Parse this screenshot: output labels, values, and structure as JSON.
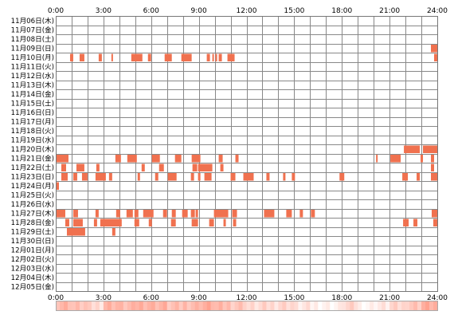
{
  "chart_data": {
    "type": "heatmap",
    "title": "",
    "xlabel": "",
    "ylabel": "",
    "x_ticks": [
      "0:00",
      "3:00",
      "6:00",
      "9:00",
      "12:00",
      "15:00",
      "18:00",
      "21:00",
      "24:00"
    ],
    "x_range_hours": [
      0,
      24
    ],
    "grid": true,
    "colors": {
      "active": "#f0714f",
      "grid": "#888888",
      "frame": "#777777",
      "background": "#ffffff",
      "text": "#000000"
    },
    "rows": [
      {
        "date": "11月06日(木)",
        "intervals": []
      },
      {
        "date": "11月07日(金)",
        "intervals": []
      },
      {
        "date": "11月08日(土)",
        "intervals": []
      },
      {
        "date": "11月09日(日)",
        "intervals": [
          [
            23.6,
            24.0
          ]
        ]
      },
      {
        "date": "11月10日(月)",
        "intervals": [
          [
            0.9,
            1.1
          ],
          [
            1.5,
            1.8
          ],
          [
            2.7,
            2.9
          ],
          [
            3.5,
            3.6
          ],
          [
            4.75,
            5.45
          ],
          [
            5.8,
            6.0
          ],
          [
            6.85,
            7.3
          ],
          [
            7.9,
            8.55
          ],
          [
            9.5,
            9.7
          ],
          [
            9.85,
            9.95
          ],
          [
            10.05,
            10.15
          ],
          [
            10.25,
            10.45
          ],
          [
            10.8,
            11.25
          ],
          [
            23.8,
            24.0
          ]
        ]
      },
      {
        "date": "11月11日(火)",
        "intervals": []
      },
      {
        "date": "11月12日(水)",
        "intervals": []
      },
      {
        "date": "11月13日(木)",
        "intervals": []
      },
      {
        "date": "11月14日(金)",
        "intervals": []
      },
      {
        "date": "11月15日(土)",
        "intervals": []
      },
      {
        "date": "11月16日(日)",
        "intervals": []
      },
      {
        "date": "11月17日(月)",
        "intervals": []
      },
      {
        "date": "11月18日(火)",
        "intervals": []
      },
      {
        "date": "11月19日(水)",
        "intervals": []
      },
      {
        "date": "11月20日(木)",
        "intervals": [
          [
            21.9,
            22.9
          ],
          [
            23.1,
            24.0
          ]
        ]
      },
      {
        "date": "11月21日(金)",
        "intervals": [
          [
            0.0,
            0.8
          ],
          [
            3.75,
            4.1
          ],
          [
            4.5,
            5.1
          ],
          [
            6.05,
            6.55
          ],
          [
            7.5,
            7.9
          ],
          [
            8.55,
            9.1
          ],
          [
            10.25,
            10.5
          ],
          [
            11.3,
            11.5
          ],
          [
            20.15,
            20.25
          ],
          [
            21.05,
            21.7
          ],
          [
            22.95,
            23.1
          ],
          [
            23.6,
            23.8
          ]
        ]
      },
      {
        "date": "11月22日(土)",
        "intervals": [
          [
            0.35,
            0.65
          ],
          [
            1.3,
            1.8
          ],
          [
            2.55,
            2.75
          ],
          [
            5.4,
            5.6
          ],
          [
            6.5,
            6.8
          ],
          [
            8.6,
            8.9
          ],
          [
            8.95,
            9.85
          ],
          [
            10.35,
            10.55
          ],
          [
            23.6,
            23.8
          ]
        ]
      },
      {
        "date": "11月23日(日)",
        "intervals": [
          [
            0.35,
            0.75
          ],
          [
            1.1,
            1.35
          ],
          [
            1.65,
            2.0
          ],
          [
            2.5,
            3.15
          ],
          [
            3.35,
            3.55
          ],
          [
            5.15,
            5.3
          ],
          [
            6.25,
            6.45
          ],
          [
            7.05,
            7.6
          ],
          [
            8.5,
            8.7
          ],
          [
            8.95,
            9.1
          ],
          [
            9.35,
            9.8
          ],
          [
            11.0,
            11.3
          ],
          [
            11.8,
            12.45
          ],
          [
            13.25,
            13.45
          ],
          [
            14.3,
            14.45
          ],
          [
            14.85,
            15.05
          ],
          [
            17.85,
            18.15
          ],
          [
            21.8,
            22.15
          ],
          [
            22.7,
            22.9
          ],
          [
            23.6,
            24.0
          ]
        ]
      },
      {
        "date": "11月24日(月)",
        "intervals": [
          [
            0.0,
            0.2
          ]
        ]
      },
      {
        "date": "11月25日(火)",
        "intervals": []
      },
      {
        "date": "11月26日(水)",
        "intervals": []
      },
      {
        "date": "11月27日(木)",
        "intervals": [
          [
            0.0,
            0.6
          ],
          [
            1.1,
            1.4
          ],
          [
            2.5,
            2.7
          ],
          [
            3.8,
            4.05
          ],
          [
            4.45,
            4.85
          ],
          [
            4.95,
            5.2
          ],
          [
            5.5,
            6.15
          ],
          [
            6.75,
            7.0
          ],
          [
            7.3,
            7.55
          ],
          [
            7.95,
            8.3
          ],
          [
            8.5,
            8.75
          ],
          [
            8.8,
            8.95
          ],
          [
            9.95,
            10.85
          ],
          [
            11.1,
            11.4
          ],
          [
            13.1,
            13.75
          ],
          [
            14.5,
            14.85
          ],
          [
            15.35,
            15.55
          ],
          [
            16.05,
            16.3
          ],
          [
            23.65,
            24.0
          ]
        ]
      },
      {
        "date": "11月28日(金)",
        "intervals": [
          [
            0.6,
            0.85
          ],
          [
            1.1,
            1.7
          ],
          [
            2.4,
            2.6
          ],
          [
            2.8,
            4.15
          ],
          [
            4.95,
            5.25
          ],
          [
            5.85,
            6.05
          ],
          [
            7.25,
            7.55
          ],
          [
            8.55,
            8.95
          ],
          [
            9.65,
            9.95
          ],
          [
            10.55,
            10.7
          ],
          [
            11.15,
            11.35
          ],
          [
            21.85,
            22.2
          ],
          [
            22.5,
            22.75
          ],
          [
            23.75,
            24.0
          ]
        ]
      },
      {
        "date": "11月29日(土)",
        "intervals": [
          [
            0.7,
            1.85
          ],
          [
            3.55,
            3.75
          ]
        ]
      },
      {
        "date": "11月30日(日)",
        "intervals": []
      },
      {
        "date": "12月01日(月)",
        "intervals": []
      },
      {
        "date": "12月02日(火)",
        "intervals": []
      },
      {
        "date": "12月03日(水)",
        "intervals": []
      },
      {
        "date": "12月04日(木)",
        "intervals": []
      },
      {
        "date": "12月05日(金)",
        "intervals": []
      }
    ],
    "summary_strip": {
      "bins_per_hour": 4,
      "intensity_by_hour": [
        0.7,
        0.55,
        0.35,
        0.7,
        0.6,
        0.75,
        0.7,
        0.55,
        0.65,
        0.75,
        0.6,
        0.55,
        0.3,
        0.35,
        0.4,
        0.2,
        0.15,
        0.1,
        0.35,
        0.1,
        0.2,
        0.35,
        0.55,
        0.75
      ]
    }
  }
}
